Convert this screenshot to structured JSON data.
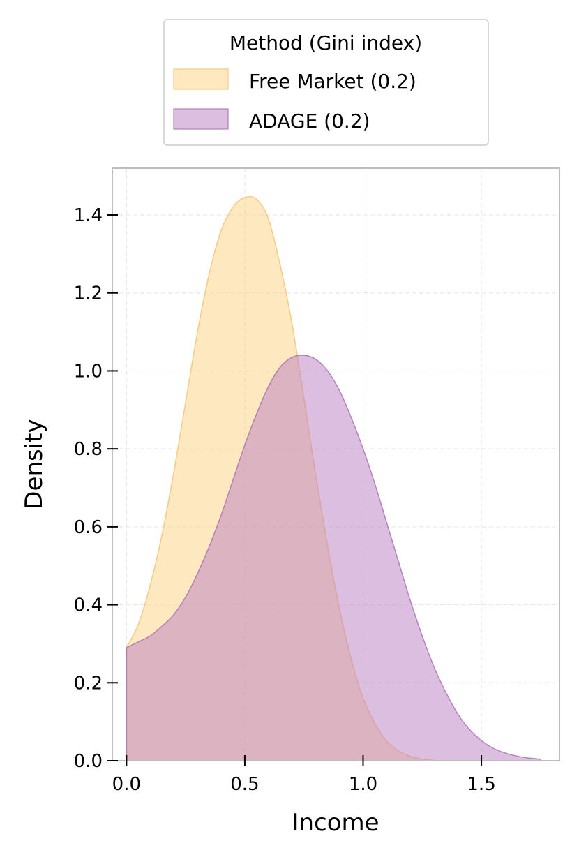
{
  "chart_data": {
    "type": "area",
    "xlabel": "Income",
    "ylabel": "Density",
    "xlim": [
      -0.06,
      1.83
    ],
    "ylim": [
      0.0,
      1.52
    ],
    "xticks": [
      "0.0",
      "0.5",
      "1.0",
      "1.5"
    ],
    "xtick_values": [
      0.0,
      0.5,
      1.0,
      1.5
    ],
    "yticks": [
      "0.0",
      "0.2",
      "0.4",
      "0.6",
      "0.8",
      "1.0",
      "1.2",
      "1.4"
    ],
    "ytick_values": [
      0.0,
      0.2,
      0.4,
      0.6,
      0.8,
      1.0,
      1.2,
      1.4
    ],
    "grid": true,
    "legend": {
      "title": "Method (Gini index)",
      "placement": "top-center-outside",
      "entries": [
        {
          "label": "Free Market (0.2)",
          "series": 0
        },
        {
          "label": "ADAGE (0.2)",
          "series": 1
        }
      ]
    },
    "series": [
      {
        "name": "Free Market (0.2)",
        "fill": "#FDD58A",
        "stroke": "#F5C16C",
        "opacity": 0.55,
        "x": [
          0.0,
          0.05,
          0.1,
          0.15,
          0.2,
          0.25,
          0.3,
          0.35,
          0.4,
          0.45,
          0.5,
          0.55,
          0.6,
          0.65,
          0.7,
          0.75,
          0.8,
          0.85,
          0.9,
          0.95,
          1.0,
          1.05,
          1.1,
          1.15,
          1.2,
          1.25,
          1.3,
          1.35
        ],
        "y": [
          0.29,
          0.35,
          0.45,
          0.58,
          0.74,
          0.92,
          1.1,
          1.25,
          1.36,
          1.42,
          1.445,
          1.44,
          1.39,
          1.27,
          1.12,
          0.93,
          0.73,
          0.55,
          0.39,
          0.26,
          0.16,
          0.095,
          0.05,
          0.025,
          0.011,
          0.004,
          0.001,
          0.0
        ]
      },
      {
        "name": "ADAGE (0.2)",
        "fill": "#B97DC4",
        "stroke": "#A86BB4",
        "opacity": 0.5,
        "x": [
          0.0,
          0.05,
          0.1,
          0.15,
          0.2,
          0.25,
          0.3,
          0.35,
          0.4,
          0.45,
          0.5,
          0.55,
          0.6,
          0.65,
          0.7,
          0.75,
          0.8,
          0.85,
          0.9,
          0.95,
          1.0,
          1.05,
          1.1,
          1.15,
          1.2,
          1.25,
          1.3,
          1.35,
          1.4,
          1.45,
          1.5,
          1.55,
          1.6,
          1.65,
          1.7,
          1.75
        ],
        "y": [
          0.29,
          0.305,
          0.32,
          0.345,
          0.375,
          0.42,
          0.48,
          0.55,
          0.63,
          0.72,
          0.81,
          0.89,
          0.96,
          1.01,
          1.035,
          1.04,
          1.03,
          1.0,
          0.95,
          0.88,
          0.8,
          0.71,
          0.61,
          0.51,
          0.41,
          0.32,
          0.24,
          0.175,
          0.12,
          0.08,
          0.052,
          0.032,
          0.02,
          0.012,
          0.007,
          0.004
        ]
      }
    ]
  }
}
